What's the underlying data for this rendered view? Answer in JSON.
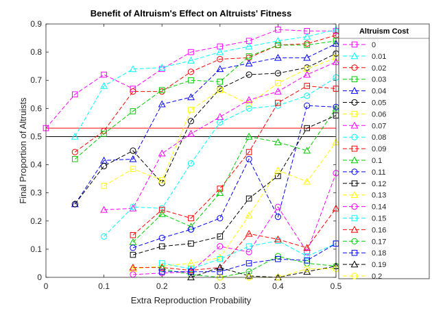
{
  "chart_data": {
    "type": "line",
    "title": "Benefit of Altruism's Effect on Altruists' Fitness",
    "xlabel": "Extra Reproduction Probability",
    "ylabel": "Final Proportion of Altruists",
    "xlim": [
      0,
      0.5
    ],
    "ylim": [
      0,
      0.9
    ],
    "xticks": [
      0,
      0.1,
      0.2,
      0.3,
      0.4,
      0.5
    ],
    "yticks": [
      0,
      0.1,
      0.2,
      0.3,
      0.4,
      0.5,
      0.6,
      0.7,
      0.8,
      0.9
    ],
    "grid": false,
    "legend": {
      "title": "Altruism Cost",
      "placement": "outside-right"
    },
    "x": [
      0,
      0.05,
      0.1,
      0.15,
      0.2,
      0.25,
      0.3,
      0.35,
      0.4,
      0.45,
      0.5
    ],
    "series": [
      {
        "name": "0",
        "color": "#ff00ff",
        "marker": "square",
        "values": [
          0.53,
          0.65,
          0.72,
          0.67,
          0.74,
          0.8,
          0.82,
          0.84,
          0.88,
          0.875,
          0.875
        ]
      },
      {
        "name": "0.01",
        "color": "#00ffff",
        "marker": "triangle-up",
        "values": [
          null,
          0.5,
          0.68,
          0.74,
          0.745,
          0.77,
          0.8,
          0.82,
          0.84,
          0.855,
          0.88
        ]
      },
      {
        "name": "0.02",
        "color": "#ff0000",
        "marker": "circle",
        "values": [
          null,
          0.445,
          0.52,
          0.66,
          0.66,
          0.73,
          0.775,
          0.78,
          0.825,
          0.83,
          0.86
        ]
      },
      {
        "name": "0.03",
        "color": "#00cc00",
        "marker": "square",
        "values": [
          null,
          0.42,
          0.51,
          0.59,
          0.665,
          0.7,
          0.695,
          0.785,
          0.825,
          0.825,
          0.84
        ]
      },
      {
        "name": "0.04",
        "color": "#0000ff",
        "marker": "triangle-up",
        "values": [
          null,
          0.26,
          0.415,
          0.42,
          0.615,
          0.64,
          0.74,
          0.76,
          0.78,
          0.78,
          0.83
        ]
      },
      {
        "name": "0.05",
        "color": "#000000",
        "marker": "circle",
        "values": [
          null,
          0.26,
          0.395,
          0.45,
          0.335,
          0.555,
          0.67,
          0.72,
          0.725,
          0.745,
          0.795
        ]
      },
      {
        "name": "0.06",
        "color": "#ffff00",
        "marker": "square",
        "values": [
          null,
          null,
          0.325,
          0.385,
          0.345,
          0.595,
          0.665,
          0.615,
          0.69,
          0.74,
          0.78
        ]
      },
      {
        "name": "0.07",
        "color": "#ff00ff",
        "marker": "triangle-up",
        "values": [
          null,
          null,
          0.24,
          0.245,
          0.44,
          0.51,
          0.57,
          0.63,
          0.66,
          0.72,
          0.765
        ]
      },
      {
        "name": "0.08",
        "color": "#00ffff",
        "marker": "circle",
        "values": [
          null,
          null,
          0.145,
          0.25,
          0.245,
          0.405,
          0.55,
          0.6,
          0.61,
          0.645,
          0.71
        ]
      },
      {
        "name": "0.09",
        "color": "#ff0000",
        "marker": "square",
        "values": [
          null,
          null,
          null,
          0.15,
          0.24,
          0.21,
          0.315,
          0.445,
          0.62,
          0.68,
          0.67
        ]
      },
      {
        "name": "0.1",
        "color": "#00cc00",
        "marker": "triangle-up",
        "values": [
          null,
          null,
          null,
          0.125,
          0.225,
          0.18,
          0.3,
          0.5,
          0.48,
          0.45,
          0.6
        ]
      },
      {
        "name": "0.11",
        "color": "#0000ff",
        "marker": "circle",
        "values": [
          null,
          null,
          null,
          0.105,
          0.14,
          0.17,
          0.21,
          0.42,
          0.215,
          0.61,
          0.605
        ]
      },
      {
        "name": "0.12",
        "color": "#000000",
        "marker": "square",
        "values": [
          null,
          null,
          null,
          0.08,
          0.11,
          0.12,
          0.145,
          0.28,
          0.36,
          0.53,
          0.575
        ]
      },
      {
        "name": "0.13",
        "color": "#ffff00",
        "marker": "triangle-up",
        "values": [
          null,
          null,
          null,
          0.03,
          0.04,
          0.05,
          0.07,
          0.22,
          0.38,
          0.34,
          0.48
        ]
      },
      {
        "name": "0.14",
        "color": "#ff00ff",
        "marker": "circle",
        "values": [
          null,
          null,
          null,
          0.01,
          0.015,
          0.02,
          0.11,
          0.09,
          0.25,
          0.09,
          0.37
        ]
      },
      {
        "name": "0.15",
        "color": "#00ffff",
        "marker": "square",
        "values": [
          null,
          null,
          null,
          null,
          0.05,
          0.03,
          0.065,
          0.11,
          0.13,
          0.075,
          0.12
        ]
      },
      {
        "name": "0.16",
        "color": "#ff0000",
        "marker": "triangle-up",
        "values": [
          null,
          null,
          null,
          0.035,
          0.035,
          0.025,
          0.035,
          0.155,
          0.135,
          0.105,
          0.245
        ]
      },
      {
        "name": "0.17",
        "color": "#00cc00",
        "marker": "circle",
        "values": [
          null,
          null,
          null,
          null,
          0.03,
          0.01,
          0.0,
          0.02,
          0.075,
          0.05,
          0.04
        ]
      },
      {
        "name": "0.18",
        "color": "#0000ff",
        "marker": "square",
        "values": [
          null,
          null,
          null,
          null,
          0.02,
          0.02,
          0.02,
          0.05,
          0.065,
          0.06,
          0.12
        ]
      },
      {
        "name": "0.19",
        "color": "#000000",
        "marker": "triangle-up",
        "values": [
          null,
          null,
          null,
          null,
          null,
          0.0,
          0.035,
          0.005,
          0.0,
          0.02,
          0.04
        ]
      },
      {
        "name": "0.2",
        "color": "#ffff00",
        "marker": "circle",
        "values": [
          null,
          null,
          null,
          null,
          null,
          null,
          0.0,
          0.0,
          0.0,
          0.03,
          0.03
        ]
      }
    ],
    "reference_lines": [
      {
        "y": 0.53,
        "color": "#ff0000"
      },
      {
        "y": 0.5,
        "color": "#000000"
      }
    ]
  }
}
